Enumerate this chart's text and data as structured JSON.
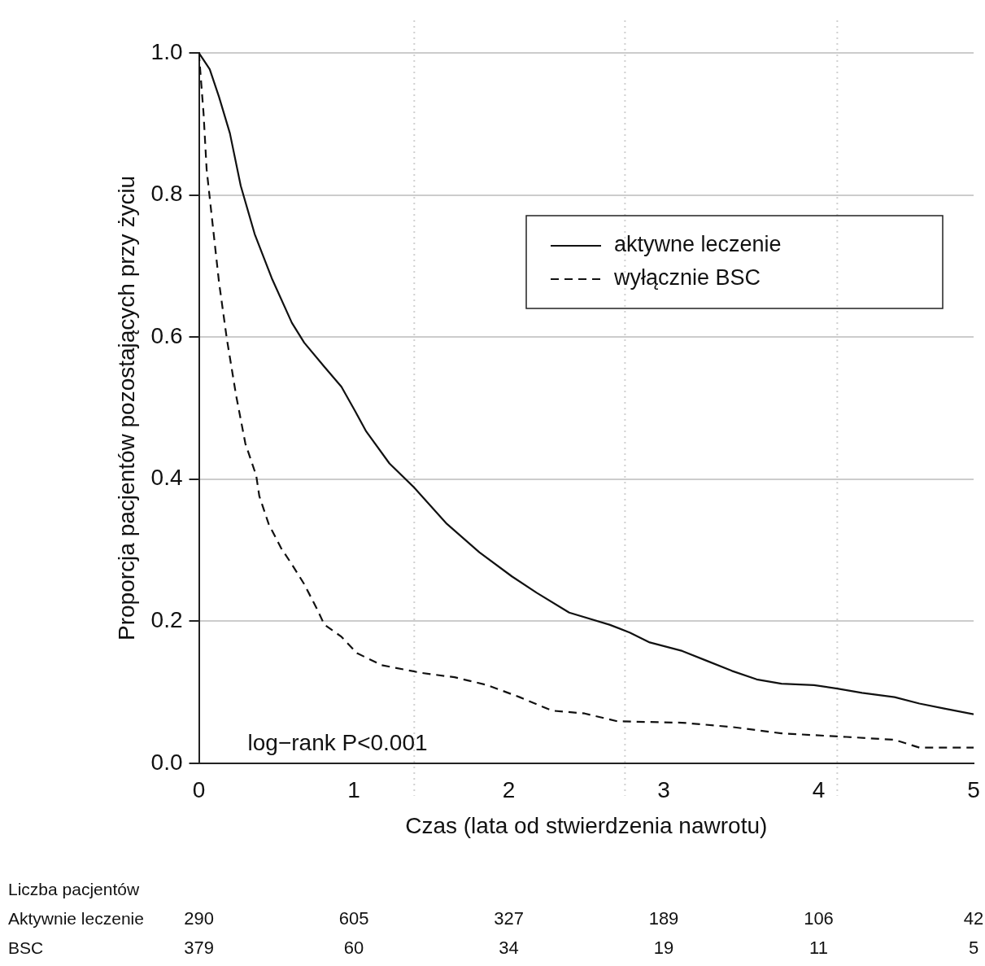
{
  "chart_data": {
    "type": "line",
    "xlabel": "Czas (lata od stwierdzenia nawrotu)",
    "ylabel": "Proporcja pacjentów pozostających przy życiu",
    "xlim": [
      0,
      5
    ],
    "xticks": [
      0,
      1,
      2,
      3,
      4,
      5
    ],
    "ylim": [
      0,
      1
    ],
    "yticks": [
      {
        "value": 0,
        "label": "0.0"
      },
      0.2,
      0.4,
      0.6,
      0.8,
      {
        "value": 1,
        "label": "1.0"
      }
    ],
    "grid": "y",
    "legend": "top right",
    "marker": "none",
    "series": [
      {
        "name": "aktywne leczenie",
        "color": "#111111",
        "line_style": "solid",
        "x": [
          0,
          0.07,
          0.13,
          0.2,
          0.27,
          0.36,
          0.47,
          0.6,
          0.68,
          0.81,
          0.92,
          1.01,
          1.08,
          1.23,
          1.39,
          1.6,
          1.81,
          2.02,
          2.18,
          2.39,
          2.65,
          2.78,
          2.91,
          3.12,
          3.28,
          3.44,
          3.6,
          3.76,
          3.97,
          4.12,
          4.28,
          4.49,
          4.65,
          4.81,
          5.0
        ],
        "values": [
          1.0,
          0.977,
          0.938,
          0.887,
          0.813,
          0.745,
          0.683,
          0.62,
          0.592,
          0.558,
          0.53,
          0.495,
          0.467,
          0.422,
          0.388,
          0.337,
          0.297,
          0.263,
          0.24,
          0.212,
          0.195,
          0.184,
          0.17,
          0.158,
          0.144,
          0.13,
          0.118,
          0.112,
          0.11,
          0.105,
          0.099,
          0.093,
          0.084,
          0.077,
          0.069
        ]
      },
      {
        "name": "wyłącznie BSC",
        "color": "#111111",
        "line_style": "dashed",
        "x": [
          0,
          0.03,
          0.05,
          0.09,
          0.13,
          0.18,
          0.24,
          0.3,
          0.37,
          0.39,
          0.45,
          0.53,
          0.6,
          0.68,
          0.76,
          0.81,
          0.92,
          1.02,
          1.18,
          1.44,
          1.65,
          1.86,
          2.07,
          2.28,
          2.49,
          2.7,
          3.12,
          3.44,
          3.76,
          4.18,
          4.49,
          4.65,
          5.0
        ],
        "values": [
          1.0,
          0.915,
          0.836,
          0.756,
          0.677,
          0.598,
          0.518,
          0.45,
          0.405,
          0.376,
          0.337,
          0.303,
          0.28,
          0.252,
          0.218,
          0.195,
          0.178,
          0.155,
          0.138,
          0.127,
          0.121,
          0.11,
          0.093,
          0.074,
          0.07,
          0.059,
          0.057,
          0.051,
          0.042,
          0.037,
          0.033,
          0.022,
          0.022
        ]
      }
    ],
    "ref_lines": [
      {
        "axis": "x",
        "value": 1.39,
        "color": "#d0d0d0",
        "line_style": "dotted"
      },
      {
        "axis": "x",
        "value": 2.75,
        "color": "#d0d0d0",
        "line_style": "dotted"
      },
      {
        "axis": "x",
        "value": 4.12,
        "color": "#d0d0d0",
        "line_style": "dotted"
      }
    ],
    "annotations": [
      "log−rank P<0.001",
      "Liczba pacjentów",
      "Aktywnie leczenie",
      "BSC",
      "290",
      "605",
      "327",
      "189",
      "106",
      "42",
      "379",
      "60",
      "34",
      "19",
      "11",
      "5"
    ]
  }
}
